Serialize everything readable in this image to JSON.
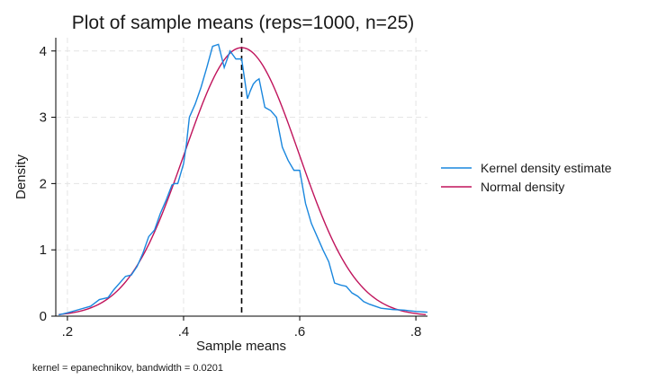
{
  "chart_data": {
    "type": "line",
    "title": "Plot of sample means (reps=1000, n=25)",
    "xlabel": "Sample means",
    "ylabel": "Density",
    "note": "kernel = epanechnikov, bandwidth = 0.0201",
    "xlim": [
      0.18,
      0.82
    ],
    "ylim": [
      0,
      4.2
    ],
    "x_ticks": [
      0.2,
      0.4,
      0.6,
      0.8
    ],
    "x_tick_labels": [
      ".2",
      ".4",
      ".6",
      ".8"
    ],
    "y_ticks": [
      0,
      1,
      2,
      3,
      4
    ],
    "y_tick_labels": [
      "0",
      "1",
      "2",
      "3",
      "4"
    ],
    "grid": true,
    "legend_position": "right",
    "reference_line": {
      "x": 0.5,
      "style": "dashed",
      "color": "#000000"
    },
    "series": [
      {
        "name": "Kernel density estimate",
        "color": "#1a87de",
        "x": [
          0.185,
          0.2,
          0.22,
          0.24,
          0.255,
          0.27,
          0.28,
          0.295,
          0.3,
          0.31,
          0.32,
          0.33,
          0.34,
          0.35,
          0.36,
          0.37,
          0.38,
          0.385,
          0.39,
          0.395,
          0.4,
          0.405,
          0.41,
          0.42,
          0.43,
          0.44,
          0.45,
          0.46,
          0.47,
          0.48,
          0.49,
          0.5,
          0.51,
          0.515,
          0.52,
          0.525,
          0.53,
          0.54,
          0.55,
          0.56,
          0.57,
          0.58,
          0.59,
          0.6,
          0.61,
          0.62,
          0.63,
          0.64,
          0.65,
          0.66,
          0.67,
          0.68,
          0.69,
          0.7,
          0.71,
          0.72,
          0.73,
          0.74,
          0.76,
          0.78,
          0.8,
          0.82
        ],
        "y": [
          0.02,
          0.05,
          0.1,
          0.15,
          0.25,
          0.28,
          0.4,
          0.55,
          0.6,
          0.62,
          0.75,
          0.95,
          1.2,
          1.3,
          1.55,
          1.75,
          1.98,
          2.0,
          2.0,
          2.15,
          2.3,
          2.6,
          3.0,
          3.2,
          3.45,
          3.75,
          4.07,
          4.1,
          3.75,
          4.0,
          3.88,
          3.88,
          3.28,
          3.4,
          3.5,
          3.55,
          3.58,
          3.15,
          3.1,
          3.0,
          2.55,
          2.35,
          2.2,
          2.2,
          1.7,
          1.4,
          1.2,
          1.0,
          0.82,
          0.5,
          0.47,
          0.45,
          0.35,
          0.3,
          0.22,
          0.18,
          0.15,
          0.12,
          0.1,
          0.09,
          0.07,
          0.06
        ]
      },
      {
        "name": "Normal density",
        "color": "#c0145c",
        "type": "normal",
        "mean": 0.5,
        "sd": 0.0985
      }
    ]
  }
}
